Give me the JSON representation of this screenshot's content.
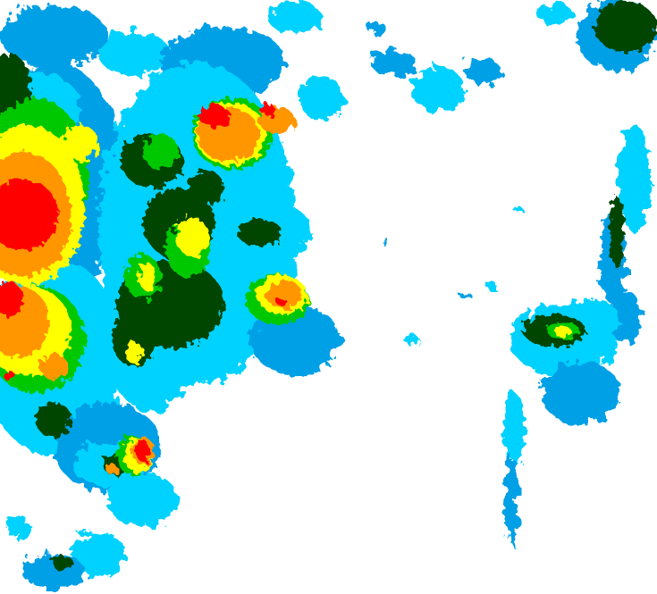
{
  "map": {
    "type": "precipitation-intensity-field",
    "background": "#ffffff",
    "colors": {
      "light_blue": "#00d2ff",
      "blue": "#00a0e6",
      "dark_green": "#004400",
      "green": "#00c800",
      "yellow": "#ffff00",
      "orange": "#ff9600",
      "red": "#ff0000"
    }
  }
}
